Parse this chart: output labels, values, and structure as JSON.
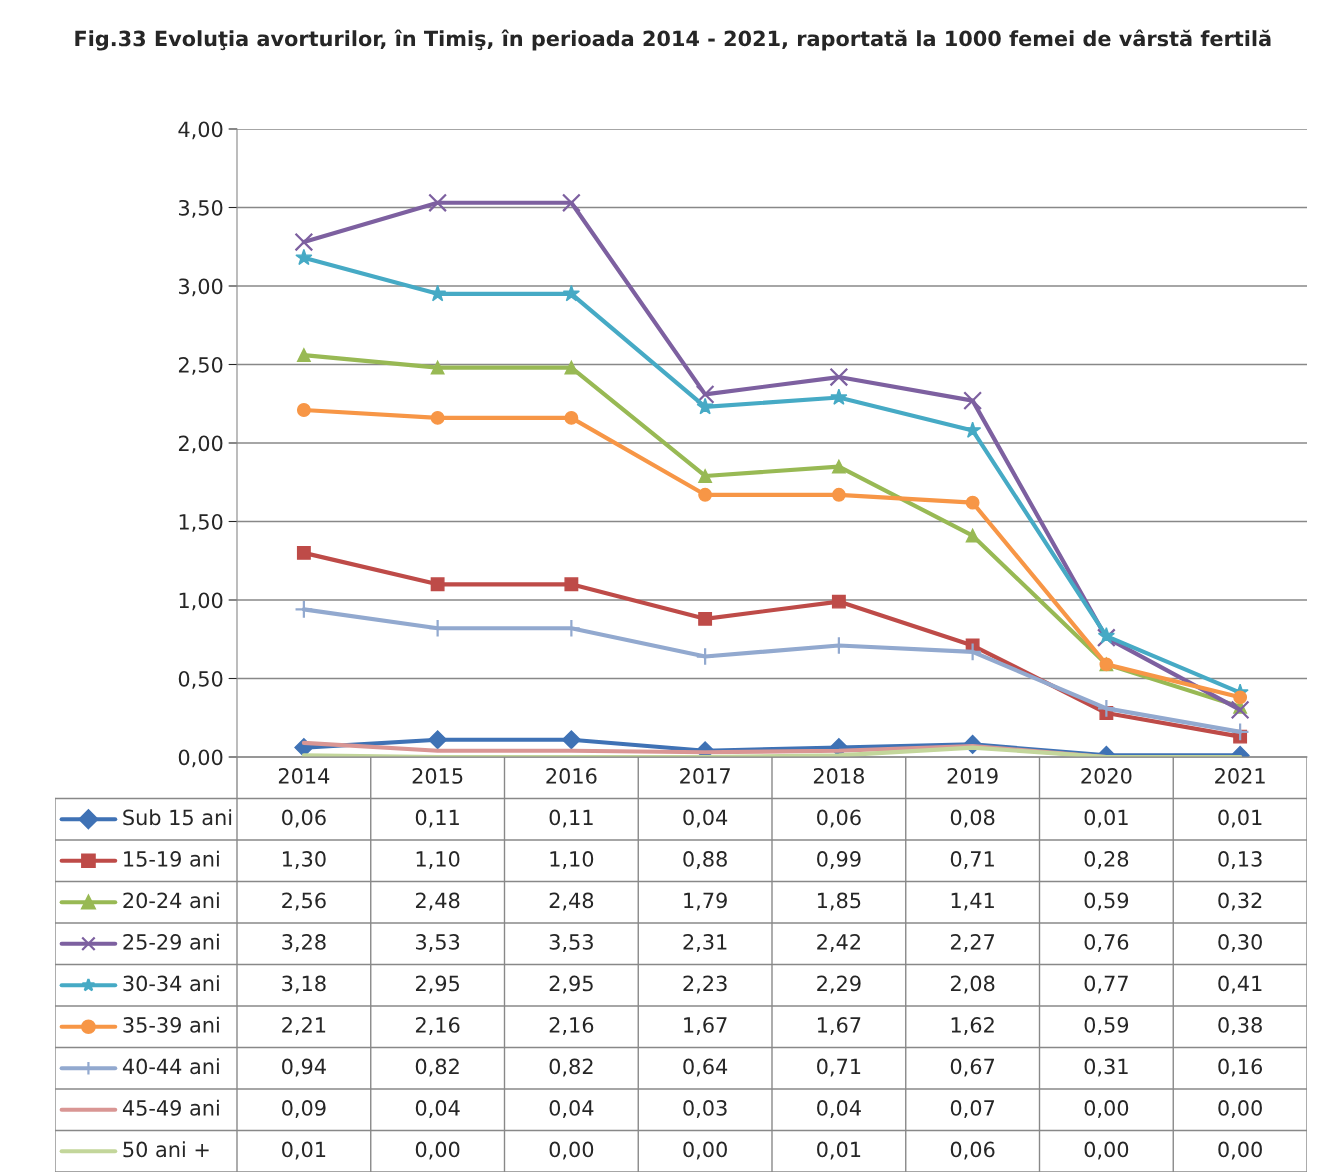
{
  "chart_data": {
    "type": "line",
    "title": "Fig.33 Evoluţia avorturilor, în Timiş, în perioada 2014 - 2021, raportată la 1000 femei de vârstă fertilă",
    "categories": [
      "2014",
      "2015",
      "2016",
      "2017",
      "2018",
      "2019",
      "2020",
      "2021"
    ],
    "ylim": [
      0,
      4
    ],
    "yticks": [
      {
        "value": 0,
        "label": "0,00"
      },
      {
        "value": 0.5,
        "label": "0,50"
      },
      {
        "value": 1,
        "label": "1,00"
      },
      {
        "value": 1.5,
        "label": "1,50"
      },
      {
        "value": 2,
        "label": "2,00"
      },
      {
        "value": 2.5,
        "label": "2,50"
      },
      {
        "value": 3,
        "label": "3,00"
      },
      {
        "value": 3.5,
        "label": "3,50"
      },
      {
        "value": 4,
        "label": "4,00"
      }
    ],
    "grid": "y",
    "legend": "bottom",
    "series": [
      {
        "name": "Sub 15 ani",
        "color": "#3f72b5",
        "marker": "diamond",
        "values": [
          0.06,
          0.11,
          0.11,
          0.04,
          0.06,
          0.08,
          0.01,
          0.01
        ],
        "value_labels": [
          "0,06",
          "0,11",
          "0,11",
          "0,04",
          "0,06",
          "0,08",
          "0,01",
          "0,01"
        ]
      },
      {
        "name": "15-19 ani",
        "color": "#be4b48",
        "marker": "square",
        "values": [
          1.3,
          1.1,
          1.1,
          0.88,
          0.99,
          0.71,
          0.28,
          0.13
        ],
        "value_labels": [
          "1,30",
          "1,10",
          "1,10",
          "0,88",
          "0,99",
          "0,71",
          "0,28",
          "0,13"
        ]
      },
      {
        "name": "20-24 ani",
        "color": "#98b954",
        "marker": "triangle",
        "values": [
          2.56,
          2.48,
          2.48,
          1.79,
          1.85,
          1.41,
          0.59,
          0.32
        ],
        "value_labels": [
          "2,56",
          "2,48",
          "2,48",
          "1,79",
          "1,85",
          "1,41",
          "0,59",
          "0,32"
        ]
      },
      {
        "name": "25-29 ani",
        "color": "#7d60a0",
        "marker": "cross",
        "values": [
          3.28,
          3.53,
          3.53,
          2.31,
          2.42,
          2.27,
          0.76,
          0.3
        ],
        "value_labels": [
          "3,28",
          "3,53",
          "3,53",
          "2,31",
          "2,42",
          "2,27",
          "0,76",
          "0,30"
        ]
      },
      {
        "name": "30-34 ani",
        "color": "#46aac5",
        "marker": "star",
        "values": [
          3.18,
          2.95,
          2.95,
          2.23,
          2.29,
          2.08,
          0.77,
          0.41
        ],
        "value_labels": [
          "3,18",
          "2,95",
          "2,95",
          "2,23",
          "2,29",
          "2,08",
          "0,77",
          "0,41"
        ]
      },
      {
        "name": "35-39 ani",
        "color": "#f79646",
        "marker": "circle",
        "values": [
          2.21,
          2.16,
          2.16,
          1.67,
          1.67,
          1.62,
          0.59,
          0.38
        ],
        "value_labels": [
          "2,21",
          "2,16",
          "2,16",
          "1,67",
          "1,67",
          "1,62",
          "0,59",
          "0,38"
        ]
      },
      {
        "name": "40-44 ani",
        "color": "#92a9cf",
        "marker": "plus",
        "values": [
          0.94,
          0.82,
          0.82,
          0.64,
          0.71,
          0.67,
          0.31,
          0.16
        ],
        "value_labels": [
          "0,94",
          "0,82",
          "0,82",
          "0,64",
          "0,71",
          "0,67",
          "0,31",
          "0,16"
        ]
      },
      {
        "name": "45-49 ani",
        "color": "#d99694",
        "marker": "none",
        "values": [
          0.09,
          0.04,
          0.04,
          0.03,
          0.04,
          0.07,
          0.0,
          0.0
        ],
        "value_labels": [
          "0,09",
          "0,04",
          "0,04",
          "0,03",
          "0,04",
          "0,07",
          "0,00",
          "0,00"
        ]
      },
      {
        "name": "50 ani +",
        "color": "#c3d69b",
        "marker": "none",
        "values": [
          0.01,
          0.0,
          0.0,
          0.0,
          0.01,
          0.06,
          0.0,
          0.0
        ],
        "value_labels": [
          "0,01",
          "0,00",
          "0,00",
          "0,00",
          "0,01",
          "0,06",
          "0,00",
          "0,00"
        ]
      }
    ]
  }
}
